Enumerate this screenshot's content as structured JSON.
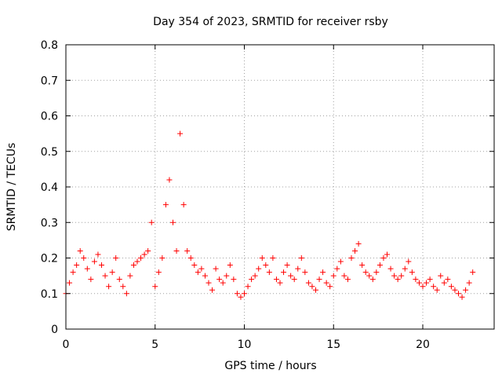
{
  "chart_data": {
    "type": "scatter",
    "title": "Day 354 of 2023, SRMTID for receiver rsby",
    "xlabel": "GPS time / hours",
    "ylabel": "SRMTID / TECUs",
    "xlim": [
      0,
      24
    ],
    "ylim": [
      0,
      0.8
    ],
    "x_ticks": [
      0,
      5,
      10,
      15,
      20
    ],
    "x_tick_labels": [
      "0",
      "5",
      "10",
      "15",
      "20"
    ],
    "y_ticks": [
      0,
      0.1,
      0.2,
      0.3,
      0.4,
      0.5,
      0.6,
      0.7,
      0.8
    ],
    "y_tick_labels": [
      "0",
      "0.1",
      "0.2",
      "0.3",
      "0.4",
      "0.5",
      "0.6",
      "0.7",
      "0.8"
    ],
    "grid": true,
    "marker": "plus",
    "color": "#ff0000",
    "data_extent_hours": [
      0,
      22.8
    ],
    "series": [
      {
        "name": "rsby",
        "x": [
          0.0,
          0.2,
          0.4,
          0.6,
          0.8,
          1.0,
          1.2,
          1.4,
          1.6,
          1.8,
          2.0,
          2.2,
          2.4,
          2.6,
          2.8,
          3.0,
          3.2,
          3.4,
          3.6,
          3.8,
          4.0,
          4.2,
          4.4,
          4.6,
          4.8,
          5.0,
          5.2,
          5.4,
          5.6,
          5.8,
          6.0,
          6.2,
          6.4,
          6.6,
          6.8,
          7.0,
          7.2,
          7.4,
          7.6,
          7.8,
          8.0,
          8.2,
          8.4,
          8.6,
          8.8,
          9.0,
          9.2,
          9.4,
          9.6,
          9.8,
          10.0,
          10.2,
          10.4,
          10.6,
          10.8,
          11.0,
          11.2,
          11.4,
          11.6,
          11.8,
          12.0,
          12.2,
          12.4,
          12.6,
          12.8,
          13.0,
          13.2,
          13.4,
          13.6,
          13.8,
          14.0,
          14.2,
          14.4,
          14.6,
          14.8,
          15.0,
          15.2,
          15.4,
          15.6,
          15.8,
          16.0,
          16.2,
          16.4,
          16.6,
          16.8,
          17.0,
          17.2,
          17.4,
          17.6,
          17.8,
          18.0,
          18.2,
          18.4,
          18.6,
          18.8,
          19.0,
          19.2,
          19.4,
          19.6,
          19.8,
          20.0,
          20.2,
          20.4,
          20.6,
          20.8,
          21.0,
          21.2,
          21.4,
          21.6,
          21.8,
          22.0,
          22.2,
          22.4,
          22.6,
          22.8
        ],
        "y": [
          0.1,
          0.13,
          0.16,
          0.18,
          0.22,
          0.2,
          0.17,
          0.14,
          0.19,
          0.21,
          0.18,
          0.15,
          0.12,
          0.16,
          0.2,
          0.14,
          0.12,
          0.1,
          0.15,
          0.18,
          0.19,
          0.2,
          0.21,
          0.22,
          0.3,
          0.12,
          0.16,
          0.2,
          0.35,
          0.42,
          0.3,
          0.22,
          0.55,
          0.35,
          0.22,
          0.2,
          0.18,
          0.16,
          0.17,
          0.15,
          0.13,
          0.11,
          0.17,
          0.14,
          0.13,
          0.15,
          0.18,
          0.14,
          0.1,
          0.09,
          0.1,
          0.12,
          0.14,
          0.15,
          0.17,
          0.2,
          0.18,
          0.16,
          0.2,
          0.14,
          0.13,
          0.16,
          0.18,
          0.15,
          0.14,
          0.17,
          0.2,
          0.16,
          0.13,
          0.12,
          0.11,
          0.14,
          0.16,
          0.13,
          0.12,
          0.15,
          0.17,
          0.19,
          0.15,
          0.14,
          0.2,
          0.22,
          0.24,
          0.18,
          0.16,
          0.15,
          0.14,
          0.16,
          0.18,
          0.2,
          0.21,
          0.17,
          0.15,
          0.14,
          0.15,
          0.17,
          0.19,
          0.16,
          0.14,
          0.13,
          0.12,
          0.13,
          0.14,
          0.12,
          0.11,
          0.15,
          0.13,
          0.14,
          0.12,
          0.11,
          0.1,
          0.09,
          0.11,
          0.13,
          0.16
        ]
      }
    ]
  }
}
